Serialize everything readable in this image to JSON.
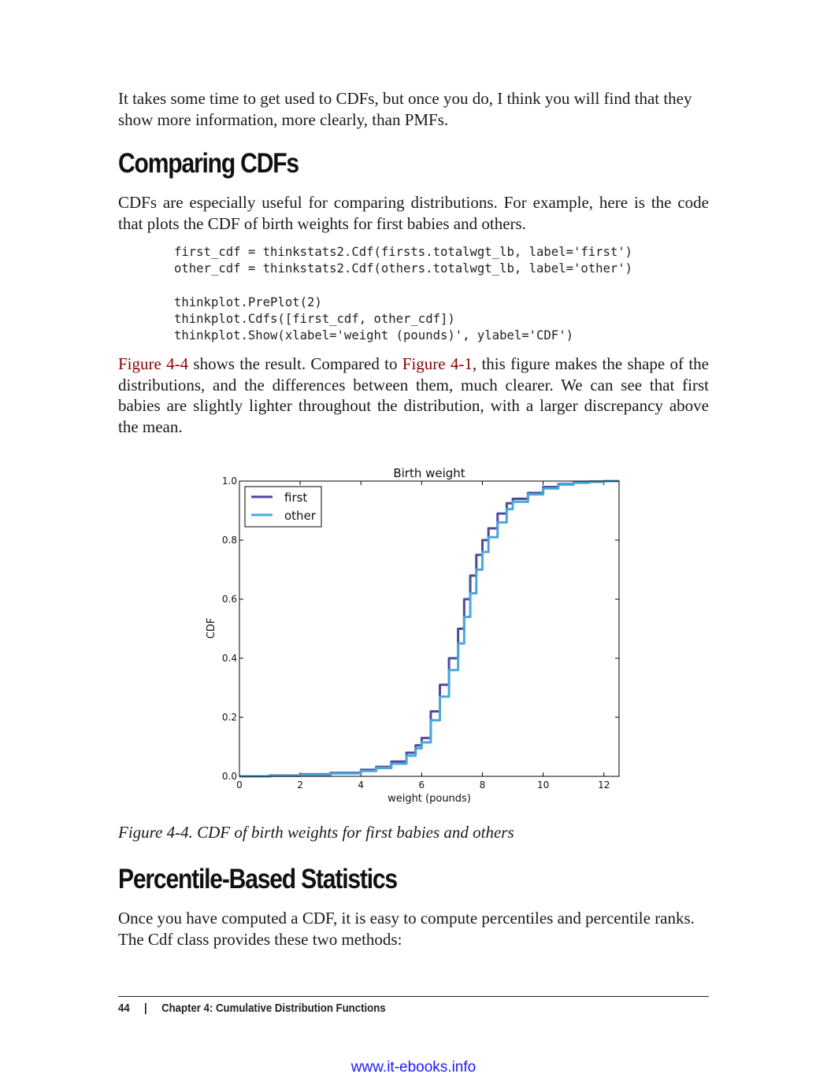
{
  "intro": {
    "paragraph": "It takes some time to get used to CDFs, but once you do, I think you will find that they show more information, more clearly, than PMFs."
  },
  "section1": {
    "heading": "Comparing CDFs",
    "paragraph": "CDFs are especially useful for comparing distributions. For example, here is the code that plots the CDF of birth weights for first babies and others.",
    "code_lines": [
      "first_cdf = thinkstats2.Cdf(firsts.totalwgt_lb, label='first')",
      "other_cdf = thinkstats2.Cdf(others.totalwgt_lb, label='other')",
      "",
      "thinkplot.PrePlot(2)",
      "thinkplot.Cdfs([first_cdf, other_cdf])",
      "thinkplot.Show(xlabel='weight (pounds)', ylabel='CDF')"
    ],
    "result_link1": "Figure 4-4",
    "result_text1": " shows the result. Compared to ",
    "result_link2": "Figure 4-1",
    "result_text2": ", this figure makes the shape of the distributions, and the differences between them, much clearer. We can see that first babies are slightly lighter throughout the distribution, with a larger discrepancy above the mean."
  },
  "figure": {
    "caption": "Figure 4-4. CDF of birth weights for first babies and others"
  },
  "chart_data": {
    "type": "line",
    "title": "Birth weight",
    "xlabel": "weight (pounds)",
    "ylabel": "CDF",
    "xlim": [
      0,
      12.5
    ],
    "ylim": [
      0,
      1
    ],
    "xticks": [
      "0",
      "2",
      "4",
      "6",
      "8",
      "10",
      "12"
    ],
    "yticks": [
      "0.0",
      "0.2",
      "0.4",
      "0.6",
      "0.8",
      "1.0"
    ],
    "legend": "top-left",
    "grid": false,
    "series": [
      {
        "name": "first",
        "color": "#4e4a9b",
        "x": [
          0,
          1,
          2,
          3,
          4,
          4.5,
          5,
          5.5,
          5.8,
          6,
          6.3,
          6.6,
          6.9,
          7.2,
          7.4,
          7.6,
          7.8,
          8,
          8.2,
          8.5,
          8.8,
          9,
          9.5,
          10,
          10.5,
          11,
          11.5,
          12,
          12.5
        ],
        "y": [
          0,
          0.003,
          0.007,
          0.012,
          0.022,
          0.032,
          0.05,
          0.08,
          0.105,
          0.13,
          0.22,
          0.31,
          0.4,
          0.5,
          0.6,
          0.68,
          0.75,
          0.8,
          0.84,
          0.89,
          0.925,
          0.94,
          0.96,
          0.98,
          0.99,
          0.995,
          0.998,
          1,
          1
        ]
      },
      {
        "name": "other",
        "color": "#4aa8d8",
        "x": [
          0,
          1,
          2,
          3,
          4,
          4.5,
          5,
          5.5,
          5.8,
          6,
          6.3,
          6.6,
          6.9,
          7.2,
          7.4,
          7.6,
          7.8,
          8,
          8.2,
          8.5,
          8.8,
          9,
          9.5,
          10,
          10.5,
          11,
          11.5,
          12,
          12.5
        ],
        "y": [
          0,
          0.002,
          0.005,
          0.01,
          0.018,
          0.028,
          0.043,
          0.07,
          0.095,
          0.115,
          0.19,
          0.27,
          0.36,
          0.45,
          0.54,
          0.62,
          0.7,
          0.76,
          0.81,
          0.86,
          0.905,
          0.93,
          0.955,
          0.975,
          0.988,
          0.994,
          0.997,
          1,
          1
        ]
      }
    ]
  },
  "section2": {
    "heading": "Percentile-Based Statistics",
    "paragraph": "Once you have computed a CDF, it is easy to compute percentiles and percentile ranks. The Cdf class provides these two methods:"
  },
  "footer": {
    "page_number": "44",
    "separator": "|",
    "chapter": "Chapter 4: Cumulative Distribution Functions"
  },
  "watermark": "www.it-ebooks.info"
}
